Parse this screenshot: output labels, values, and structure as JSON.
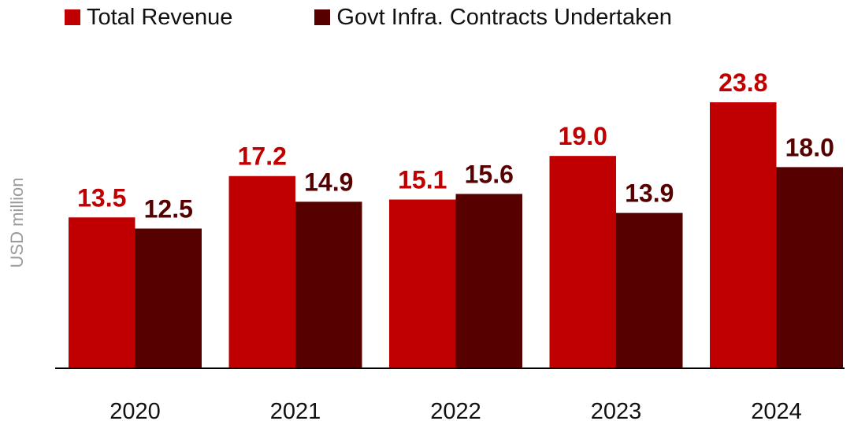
{
  "chart_data": {
    "type": "bar",
    "categories": [
      "2020",
      "2021",
      "2022",
      "2023",
      "2024"
    ],
    "series": [
      {
        "name": "Total Revenue",
        "values": [
          13.5,
          17.2,
          15.1,
          19.0,
          23.8
        ],
        "color": "#c00000",
        "label_color": "#c00000"
      },
      {
        "name": "Govt Infra. Contracts Undertaken",
        "values": [
          12.5,
          14.9,
          15.6,
          13.9,
          18.0
        ],
        "color": "#560000",
        "label_color": "#560000"
      }
    ],
    "ylabel": "USD million",
    "ylim": [
      0,
      26
    ],
    "grid": false,
    "legend": "top-left",
    "data_labels": [
      "13.5",
      "17.2",
      "15.1",
      "19.0",
      "23.8",
      "12.5",
      "14.9",
      "15.6",
      "13.9",
      "18.0"
    ]
  }
}
